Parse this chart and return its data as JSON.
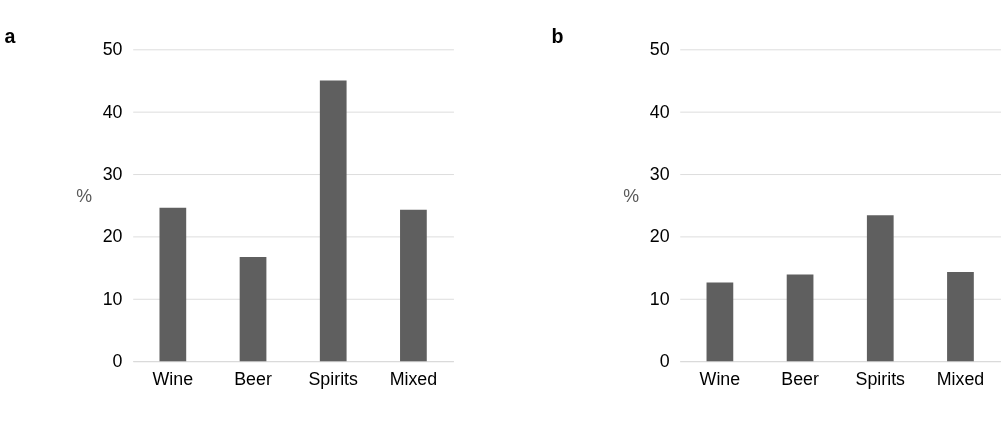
{
  "chart_data": [
    {
      "type": "bar",
      "title": "a",
      "ylabel": "%",
      "categories": [
        "Wine",
        "Beer",
        "Spirits",
        "Mixed"
      ],
      "values": [
        24.6,
        16.7,
        45.0,
        24.3
      ],
      "color": "#5f5f5f",
      "ylim": [
        0,
        50
      ],
      "yticks": [
        0,
        10,
        20,
        30,
        40,
        50
      ],
      "grid": "y"
    },
    {
      "type": "bar",
      "title": "b",
      "ylabel": "%",
      "categories": [
        "Wine",
        "Beer",
        "Spirits",
        "Mixed"
      ],
      "values": [
        12.6,
        13.9,
        23.4,
        14.3
      ],
      "color": "#5f5f5f",
      "ylim": [
        0,
        50
      ],
      "yticks": [
        0,
        10,
        20,
        30,
        40,
        50
      ],
      "grid": "y"
    }
  ]
}
